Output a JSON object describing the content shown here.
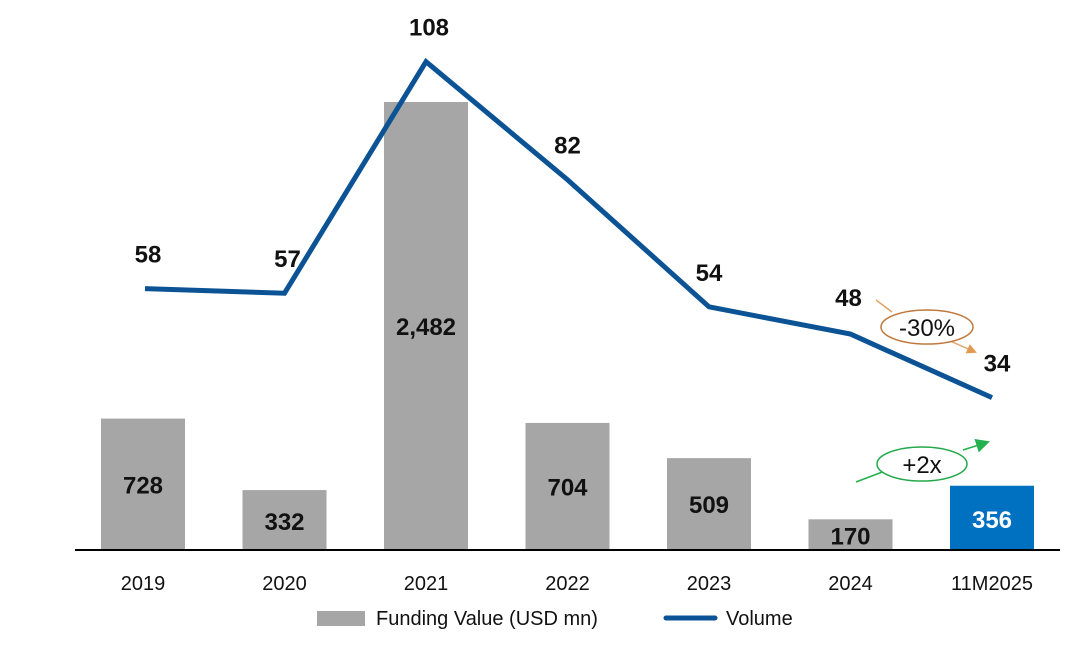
{
  "chart_data": {
    "type": "bar",
    "title": "",
    "xlabel": "",
    "ylabel": "",
    "grid": false,
    "categories": [
      "2019",
      "2020",
      "2021",
      "2022",
      "2023",
      "2024",
      "11M2025"
    ],
    "series": [
      {
        "name": "Funding Value (USD mn)",
        "type": "bar",
        "values": [
          728,
          332,
          2482,
          704,
          509,
          170,
          356
        ],
        "labels": [
          "728",
          "332",
          "2,482",
          "704",
          "509",
          "170",
          "356"
        ],
        "color": "#A6A6A6",
        "highlight_color": "#0070C0",
        "highlight_index": 6
      },
      {
        "name": "Volume",
        "type": "line",
        "values": [
          58,
          57,
          108,
          82,
          54,
          48,
          34
        ],
        "labels": [
          "58",
          "57",
          "108",
          "82",
          "54",
          "48",
          "34"
        ],
        "color": "#0B5394"
      }
    ],
    "legend_position": "bottom-center",
    "annotations": [
      {
        "text": "-30%",
        "series": "Volume",
        "from": "2024",
        "to": "11M2025",
        "color": "#C0783A"
      },
      {
        "text": "+2x",
        "series": "Funding Value (USD mn)",
        "from": "2024",
        "to": "11M2025",
        "color": "#22A84A"
      }
    ]
  }
}
